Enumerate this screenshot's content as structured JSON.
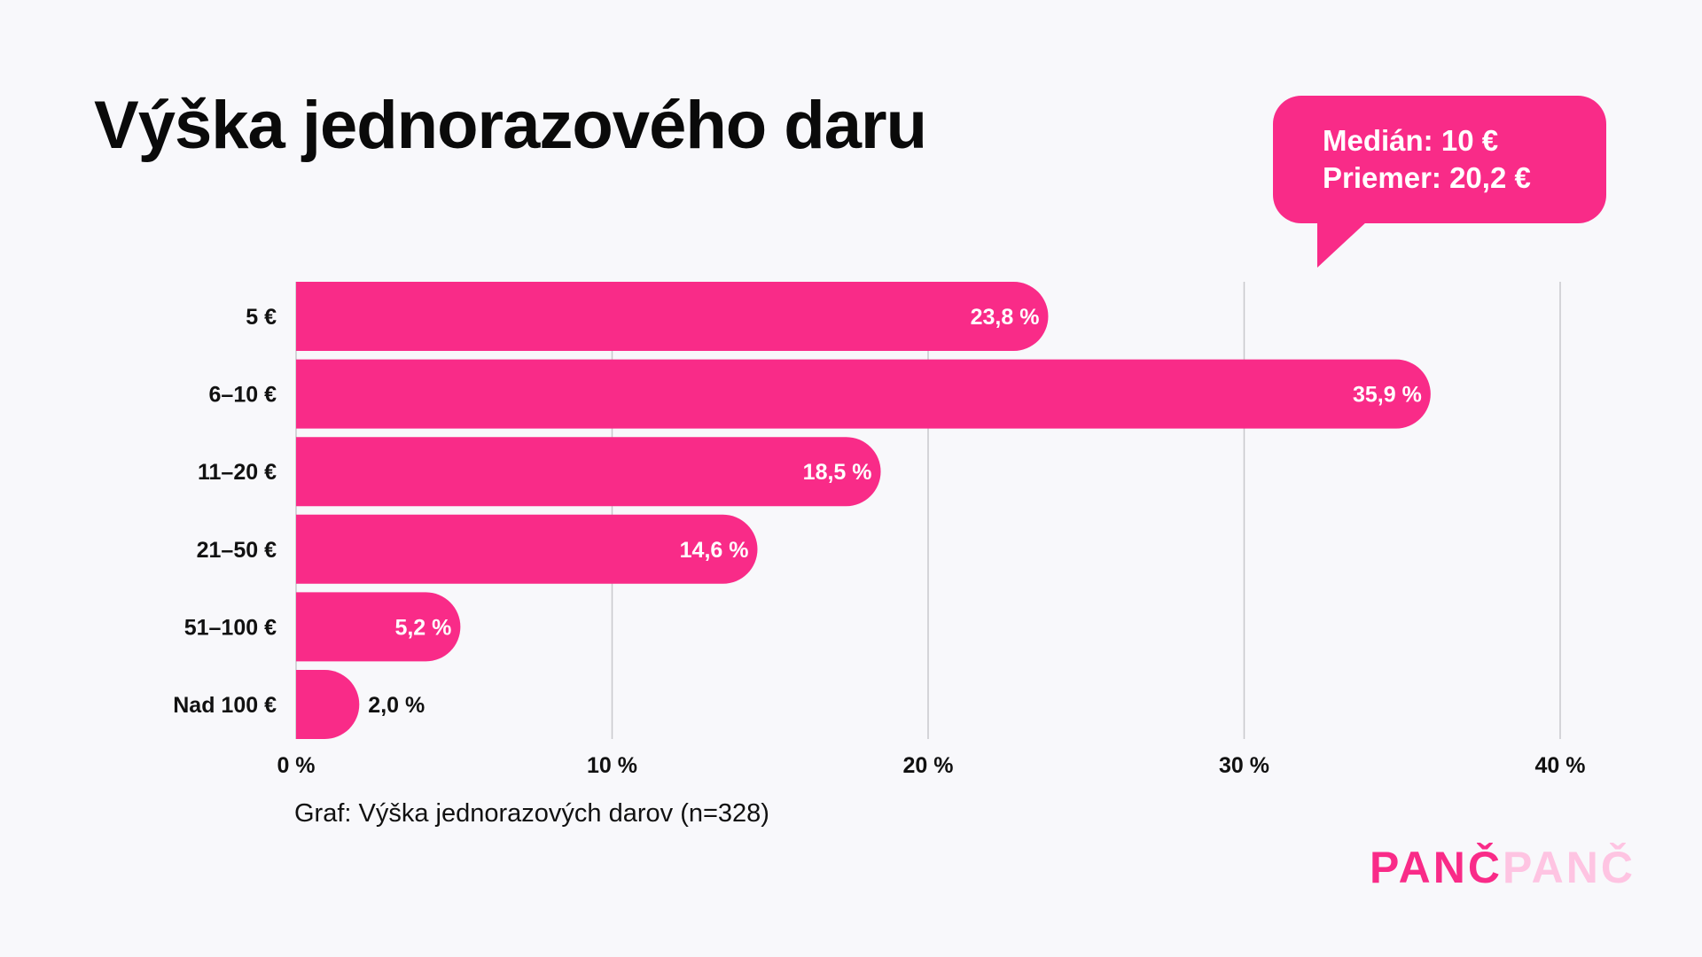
{
  "title": "Výška jednorazového daru",
  "callout": {
    "median": "Medián: 10 €",
    "mean": "Priemer: 20,2 €"
  },
  "footnote": "Graf: Výška jednorazových darov (n=328)",
  "logo": {
    "part1": "PANČ",
    "part2": "PANČ"
  },
  "colors": {
    "bar": "#f92b88",
    "grid": "#c8c8cc",
    "background": "#f8f8fb",
    "logo_light": "#fec4e2"
  },
  "chart_data": {
    "type": "bar",
    "orientation": "horizontal",
    "title": "Výška jednorazového daru",
    "xlabel": "",
    "ylabel": "",
    "categories": [
      "5 €",
      "6–10 €",
      "11–20 €",
      "21–50 €",
      "51–100 €",
      "Nad 100 €"
    ],
    "values": [
      23.8,
      35.9,
      18.5,
      14.6,
      5.2,
      2.0
    ],
    "value_labels": [
      "23,8 %",
      "35,9 %",
      "18,5 %",
      "14,6 %",
      "5,2 %",
      "2,0 %"
    ],
    "xlim": [
      0,
      40
    ],
    "x_ticks": [
      0,
      10,
      20,
      30,
      40
    ],
    "x_tick_labels": [
      "0 %",
      "10 %",
      "20 %",
      "30 %",
      "40 %"
    ],
    "grid": "vertical",
    "legend": "none"
  }
}
